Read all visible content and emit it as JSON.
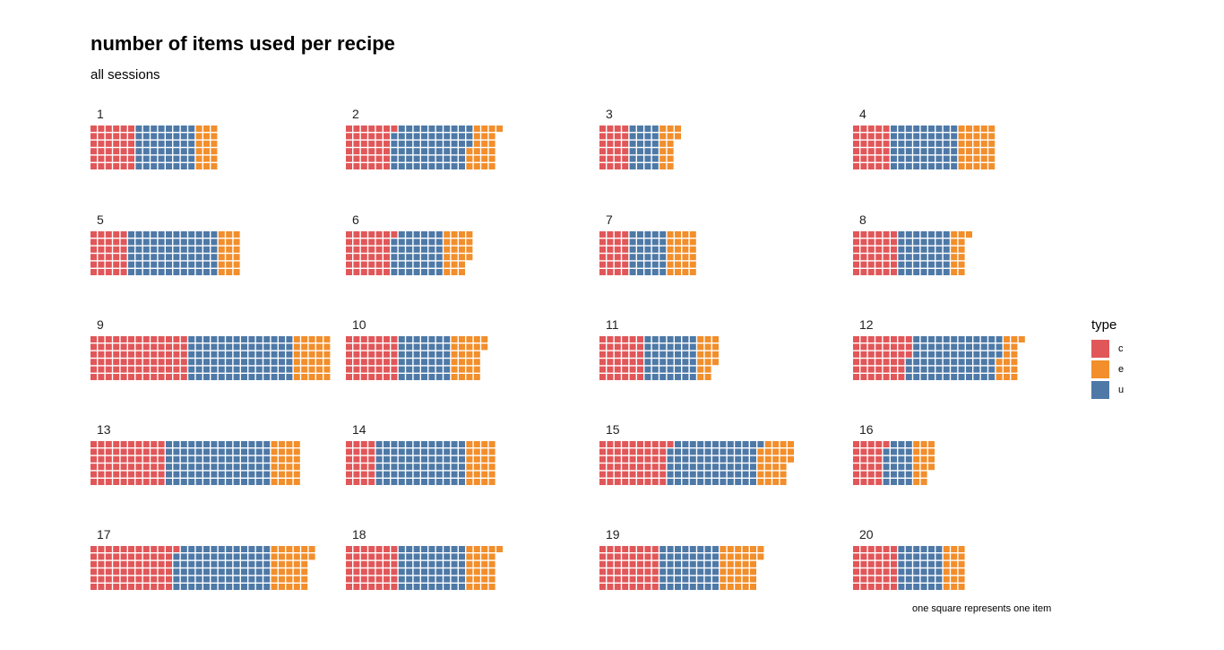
{
  "title": "number of items used per recipe",
  "subtitle": "all sessions",
  "caption": "one square represents one item",
  "legend": {
    "title": "type",
    "items": [
      {
        "label": "c",
        "color": "#e15759"
      },
      {
        "label": "e",
        "color": "#f28e2b"
      },
      {
        "label": "u",
        "color": "#4e79a7"
      }
    ]
  },
  "chart_data": {
    "type": "waffle",
    "title": "number of items used per recipe",
    "subtitle": "all sessions",
    "legend_title": "type",
    "categories": [
      "c",
      "u",
      "e"
    ],
    "rows_per_column": 6,
    "panels": [
      {
        "label": "1",
        "counts": {
          "c": 36,
          "u": 48,
          "e": 18
        }
      },
      {
        "label": "2",
        "counts": {
          "c": 37,
          "u": 62,
          "e": 22
        }
      },
      {
        "label": "3",
        "counts": {
          "c": 24,
          "u": 24,
          "e": 14
        }
      },
      {
        "label": "4",
        "counts": {
          "c": 30,
          "u": 54,
          "e": 30
        }
      },
      {
        "label": "5",
        "counts": {
          "c": 30,
          "u": 72,
          "e": 18
        }
      },
      {
        "label": "6",
        "counts": {
          "c": 37,
          "u": 41,
          "e": 22
        }
      },
      {
        "label": "7",
        "counts": {
          "c": 24,
          "u": 30,
          "e": 24
        }
      },
      {
        "label": "8",
        "counts": {
          "c": 36,
          "u": 42,
          "e": 13
        }
      },
      {
        "label": "9",
        "counts": {
          "c": 78,
          "u": 84,
          "e": 30
        }
      },
      {
        "label": "10",
        "counts": {
          "c": 42,
          "u": 42,
          "e": 26
        }
      },
      {
        "label": "11",
        "counts": {
          "c": 36,
          "u": 42,
          "e": 16
        }
      },
      {
        "label": "12",
        "counts": {
          "c": 45,
          "u": 72,
          "e": 16
        }
      },
      {
        "label": "13",
        "counts": {
          "c": 60,
          "u": 84,
          "e": 24
        }
      },
      {
        "label": "14",
        "counts": {
          "c": 24,
          "u": 72,
          "e": 24
        }
      },
      {
        "label": "15",
        "counts": {
          "c": 55,
          "u": 72,
          "e": 26
        }
      },
      {
        "label": "16",
        "counts": {
          "c": 25,
          "u": 23,
          "e": 16
        }
      },
      {
        "label": "17",
        "counts": {
          "c": 67,
          "u": 77,
          "e": 32
        }
      },
      {
        "label": "18",
        "counts": {
          "c": 42,
          "u": 54,
          "e": 25
        }
      },
      {
        "label": "19",
        "counts": {
          "c": 48,
          "u": 48,
          "e": 32
        }
      },
      {
        "label": "20",
        "counts": {
          "c": 36,
          "u": 36,
          "e": 18
        }
      }
    ]
  }
}
